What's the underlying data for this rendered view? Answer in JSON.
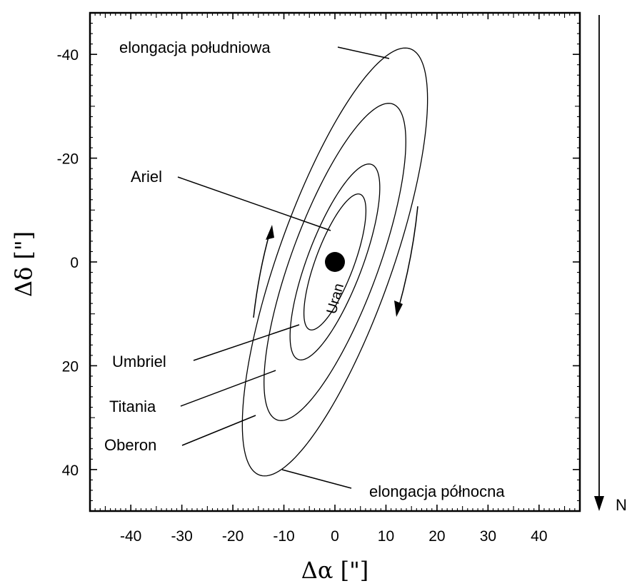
{
  "chart_data": {
    "type": "orbit-diagram",
    "xlabel": "Δα [\"]",
    "ylabel": "Δδ [\"]",
    "xlim": [
      -48,
      48
    ],
    "ylim": [
      48,
      -48
    ],
    "y_inverted": true,
    "xticks": [
      -40,
      -30,
      -20,
      -10,
      0,
      10,
      20,
      30,
      40
    ],
    "yticks": [
      -40,
      -20,
      0,
      20,
      40
    ],
    "grid": false,
    "north_label": "N",
    "planet": {
      "label": "Uran",
      "x": 0,
      "y": 0
    },
    "orbits": [
      {
        "name": "Oberon",
        "semi_axis_tip": [
          10.5,
          -40
        ],
        "minor_tip": [
          -14.8,
          10
        ]
      },
      {
        "name": "Titania",
        "semi_axis_tip": [
          7.8,
          -29.5
        ],
        "minor_tip": [
          -11.5,
          8
        ]
      },
      {
        "name": "Umbriel",
        "semi_axis_tip": [
          4.9,
          -18.2
        ],
        "minor_tip": [
          -7.3,
          5
        ]
      },
      {
        "name": "Ariel",
        "semi_axis_tip": [
          3.3,
          -12.6
        ],
        "minor_tip": [
          -5.1,
          3.6
        ]
      }
    ],
    "annotations": [
      {
        "text": "elongacja południowa",
        "target": [
          10.5,
          -40
        ]
      },
      {
        "text": "elongacja północna",
        "target": [
          -10.5,
          40
        ]
      },
      {
        "text": "Ariel",
        "target": [
          -0.5,
          -6.5
        ]
      },
      {
        "text": "Umbriel",
        "target": [
          -7,
          11.5
        ]
      },
      {
        "text": "Titania",
        "target": [
          -11.5,
          20.5
        ]
      },
      {
        "text": "Oberon",
        "target": [
          -15.5,
          29.5
        ]
      }
    ]
  },
  "colors": {
    "ink": "#000000",
    "background": "#ffffff"
  }
}
